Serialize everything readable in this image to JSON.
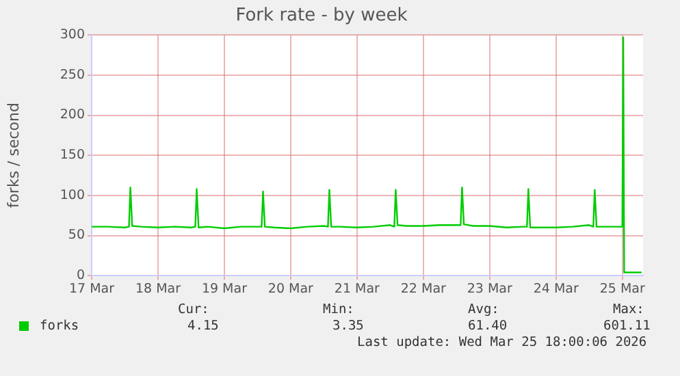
{
  "chart_data": {
    "type": "line",
    "title": "Fork rate - by week",
    "ylabel": "forks / second",
    "x": [
      "2026-03-17T00:00",
      "2026-03-17T06:00",
      "2026-03-17T12:00",
      "2026-03-17T13:30",
      "2026-03-17T14:00",
      "2026-03-17T14:40",
      "2026-03-17T18:00",
      "2026-03-18T00:00",
      "2026-03-18T06:00",
      "2026-03-18T12:00",
      "2026-03-18T13:30",
      "2026-03-18T14:00",
      "2026-03-18T14:40",
      "2026-03-18T18:00",
      "2026-03-19T00:00",
      "2026-03-19T06:00",
      "2026-03-19T12:00",
      "2026-03-19T13:30",
      "2026-03-19T14:00",
      "2026-03-19T14:40",
      "2026-03-19T18:00",
      "2026-03-20T00:00",
      "2026-03-20T06:00",
      "2026-03-20T12:00",
      "2026-03-20T13:30",
      "2026-03-20T14:00",
      "2026-03-20T14:40",
      "2026-03-20T18:00",
      "2026-03-21T00:00",
      "2026-03-21T06:00",
      "2026-03-21T12:00",
      "2026-03-21T13:30",
      "2026-03-21T14:00",
      "2026-03-21T14:40",
      "2026-03-21T18:00",
      "2026-03-22T00:00",
      "2026-03-22T06:00",
      "2026-03-22T12:00",
      "2026-03-22T13:30",
      "2026-03-22T14:00",
      "2026-03-22T14:40",
      "2026-03-22T18:00",
      "2026-03-23T00:00",
      "2026-03-23T06:00",
      "2026-03-23T12:00",
      "2026-03-23T13:30",
      "2026-03-23T14:00",
      "2026-03-23T14:40",
      "2026-03-23T18:00",
      "2026-03-24T00:00",
      "2026-03-24T06:00",
      "2026-03-24T12:00",
      "2026-03-24T13:30",
      "2026-03-24T14:00",
      "2026-03-24T14:40",
      "2026-03-24T18:00",
      "2026-03-25T00:00",
      "2026-03-25T00:20",
      "2026-03-25T00:40",
      "2026-03-25T07:00"
    ],
    "series": [
      {
        "name": "forks",
        "color": "#00cc00",
        "values": [
          61,
          61,
          60,
          61,
          110,
          62,
          61,
          60,
          61,
          60,
          61,
          108,
          60,
          61,
          59,
          61,
          61,
          61,
          105,
          61,
          60,
          59,
          61,
          62,
          61,
          107,
          61,
          61,
          60,
          61,
          63,
          61,
          107,
          63,
          62,
          62,
          63,
          63,
          63,
          110,
          64,
          62,
          62,
          60,
          61,
          61,
          108,
          60,
          60,
          60,
          61,
          63,
          61,
          107,
          61,
          61,
          61,
          297,
          4,
          4
        ]
      }
    ],
    "xlim": [
      "2026-03-17T00:00",
      "2026-03-25T07:30"
    ],
    "xticks": [
      {
        "value": "2026-03-17",
        "label": "17 Mar"
      },
      {
        "value": "2026-03-18",
        "label": "18 Mar"
      },
      {
        "value": "2026-03-19",
        "label": "19 Mar"
      },
      {
        "value": "2026-03-20",
        "label": "20 Mar"
      },
      {
        "value": "2026-03-21",
        "label": "21 Mar"
      },
      {
        "value": "2026-03-22",
        "label": "22 Mar"
      },
      {
        "value": "2026-03-23",
        "label": "23 Mar"
      },
      {
        "value": "2026-03-24",
        "label": "24 Mar"
      },
      {
        "value": "2026-03-25",
        "label": "25 Mar"
      }
    ],
    "ylim": [
      0,
      300
    ],
    "yticks": [
      0,
      50,
      100,
      150,
      200,
      250,
      300
    ],
    "grid": true,
    "legend": "bottom",
    "marker": "none",
    "line_style": "solid",
    "annotations": [
      "Cur:",
      "Min:",
      "Avg:",
      "Max:",
      "4.15",
      "3.35",
      "61.40",
      "601.11",
      "Last update: Wed Mar 25 18:00:06 2026"
    ]
  }
}
